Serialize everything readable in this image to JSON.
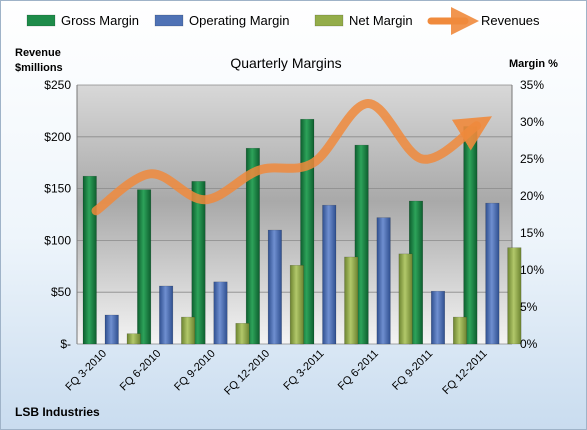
{
  "chart_data": {
    "type": "bar",
    "title": "Quarterly Margins",
    "categories": [
      "FQ 3-2010",
      "FQ 6-2010",
      "FQ 9-2010",
      "FQ 12-2010",
      "FQ 3-2011",
      "FQ 6-2011",
      "FQ 9-2011",
      "FQ 12-2011"
    ],
    "series": [
      {
        "name": "Gross Margin",
        "type": "bar",
        "axis": "left",
        "color": "#1e8c4a",
        "values": [
          162,
          149,
          157,
          189,
          217,
          192,
          138,
          210
        ]
      },
      {
        "name": "Operating Margin",
        "type": "bar",
        "axis": "left",
        "color": "#4f72b5",
        "values": [
          28,
          56,
          60,
          110,
          134,
          122,
          51,
          136
        ]
      },
      {
        "name": "Net Margin",
        "type": "bar",
        "axis": "left",
        "color": "#94ad4a",
        "values": [
          10,
          26,
          20,
          76,
          84,
          87,
          26,
          93
        ]
      },
      {
        "name": "Revenues",
        "type": "line",
        "axis": "right",
        "color": "#f08a3c",
        "values": [
          18.0,
          23.0,
          19.5,
          23.5,
          24.5,
          32.5,
          25.0,
          29.5
        ]
      }
    ],
    "ylabel": "Revenue\n$millions",
    "ylabel_lines": [
      "Revenue",
      "$millions"
    ],
    "ylim": [
      0,
      250
    ],
    "yticks": [
      "$-",
      "$50",
      "$100",
      "$150",
      "$200",
      "$250"
    ],
    "y2label": "Margin %",
    "y2lim": [
      0,
      35
    ],
    "y2ticks": [
      "0%",
      "5%",
      "10%",
      "15%",
      "20%",
      "25%",
      "30%",
      "35%"
    ],
    "legend": "top",
    "grid": true,
    "footer": "LSB Industries"
  }
}
